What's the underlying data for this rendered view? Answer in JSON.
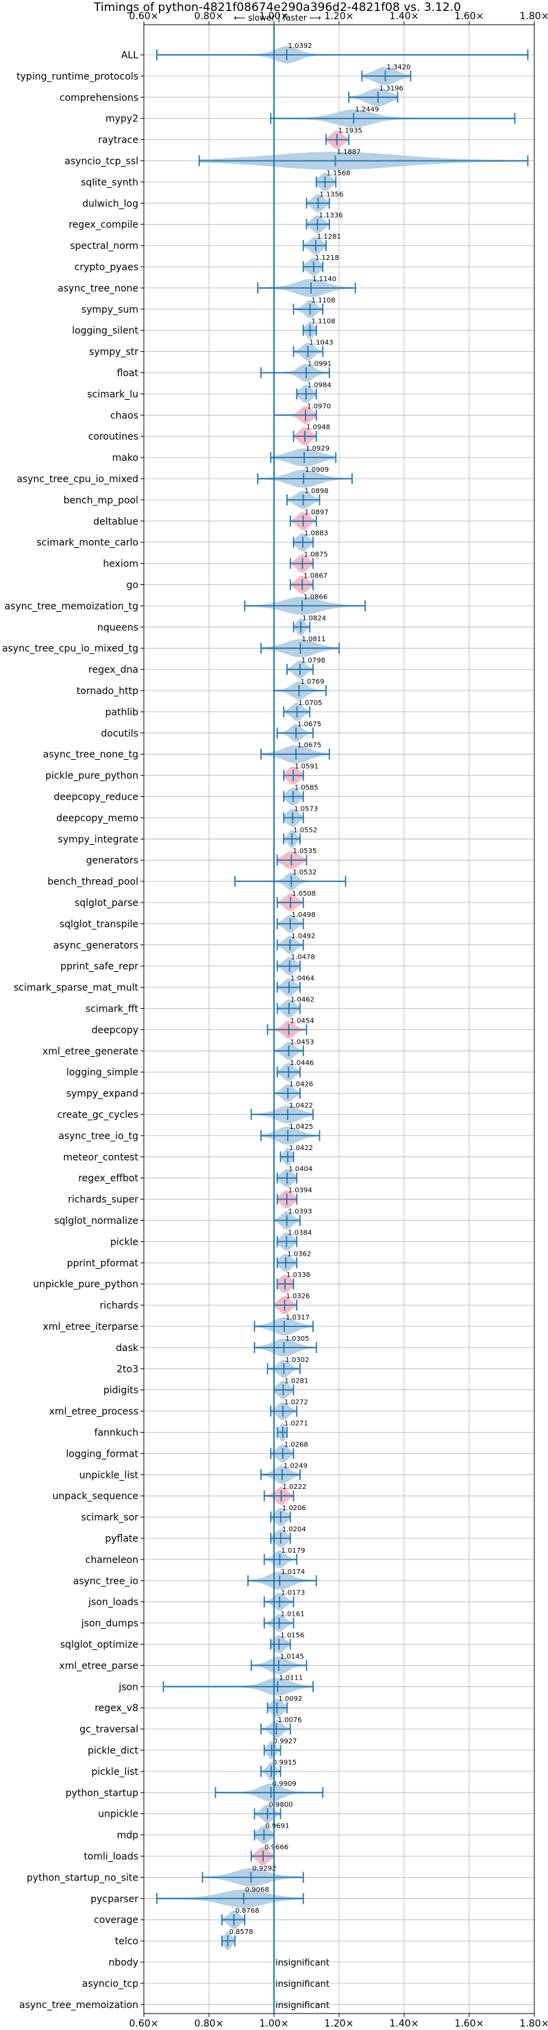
{
  "chart_data": {
    "type": "violin",
    "title": "Timings of python-4821f08674e290a396d2-4821f08 vs. 3.12.0",
    "subtitle": "⟵ slower | faster ⟶",
    "xlim": [
      0.6,
      1.8
    ],
    "xticks": [
      0.6,
      0.8,
      1.0,
      1.2,
      1.4,
      1.6,
      1.8
    ],
    "xtick_labels": [
      "0.60×",
      "0.80×",
      "1.00×",
      "1.20×",
      "1.40×",
      "1.60×",
      "1.80×"
    ],
    "reference_line": 1.0,
    "grid": true,
    "colors": {
      "violin": "#b3cde3",
      "highlight": "#f4b6c2",
      "line": "#1f77b4",
      "grid": "#b0b0b0"
    },
    "insignificant_label": "insignificant",
    "benchmarks": [
      {
        "name": "ALL",
        "value": 1.0392,
        "label": "1.0392",
        "min": 0.64,
        "max": 1.78,
        "spread": 0.06
      },
      {
        "name": "typing_runtime_protocols",
        "value": 1.342,
        "label": "1.3420",
        "min": 1.27,
        "max": 1.42,
        "spread": 0.06
      },
      {
        "name": "comprehensions",
        "value": 1.3196,
        "label": "1.3196",
        "min": 1.23,
        "max": 1.38,
        "spread": 0.06
      },
      {
        "name": "mypy2",
        "value": 1.2449,
        "label": "1.2449",
        "min": 0.99,
        "max": 1.74,
        "spread": 0.1
      },
      {
        "name": "raytrace",
        "value": 1.1935,
        "label": "1.1935",
        "min": 1.16,
        "max": 1.23,
        "spread": 0.03,
        "highlight": true
      },
      {
        "name": "asyncio_tcp_ssl",
        "value": 1.1887,
        "label": "1.1887",
        "min": 0.77,
        "max": 1.78,
        "spread": 0.35
      },
      {
        "name": "sqlite_synth",
        "value": 1.1568,
        "label": "1.1568",
        "min": 1.13,
        "max": 1.19,
        "spread": 0.03
      },
      {
        "name": "dulwich_log",
        "value": 1.1356,
        "label": "1.1356",
        "min": 1.1,
        "max": 1.17,
        "spread": 0.03
      },
      {
        "name": "regex_compile",
        "value": 1.1336,
        "label": "1.1336",
        "min": 1.1,
        "max": 1.17,
        "spread": 0.03
      },
      {
        "name": "spectral_norm",
        "value": 1.1281,
        "label": "1.1281",
        "min": 1.09,
        "max": 1.16,
        "spread": 0.03
      },
      {
        "name": "crypto_pyaes",
        "value": 1.1218,
        "label": "1.1218",
        "min": 1.09,
        "max": 1.15,
        "spread": 0.03
      },
      {
        "name": "async_tree_none",
        "value": 1.114,
        "label": "1.1140",
        "min": 0.95,
        "max": 1.25,
        "spread": 0.08
      },
      {
        "name": "sympy_sum",
        "value": 1.1108,
        "label": "1.1108",
        "min": 1.06,
        "max": 1.15,
        "spread": 0.03
      },
      {
        "name": "logging_silent",
        "value": 1.1108,
        "label": "1.1108",
        "min": 1.09,
        "max": 1.13,
        "spread": 0.02
      },
      {
        "name": "sympy_str",
        "value": 1.1043,
        "label": "1.1043",
        "min": 1.06,
        "max": 1.15,
        "spread": 0.03
      },
      {
        "name": "float",
        "value": 1.0991,
        "label": "1.0991",
        "min": 0.96,
        "max": 1.17,
        "spread": 0.04
      },
      {
        "name": "scimark_lu",
        "value": 1.0984,
        "label": "1.0984",
        "min": 1.07,
        "max": 1.13,
        "spread": 0.03
      },
      {
        "name": "chaos",
        "value": 1.097,
        "label": "1.0970",
        "min": 1.0,
        "max": 1.13,
        "spread": 0.03,
        "highlight": true
      },
      {
        "name": "coroutines",
        "value": 1.0948,
        "label": "1.0948",
        "min": 1.06,
        "max": 1.13,
        "spread": 0.03,
        "highlight": true
      },
      {
        "name": "mako",
        "value": 1.0929,
        "label": "1.0929",
        "min": 0.99,
        "max": 1.19,
        "spread": 0.08
      },
      {
        "name": "async_tree_cpu_io_mixed",
        "value": 1.0909,
        "label": "1.0909",
        "min": 0.95,
        "max": 1.24,
        "spread": 0.08
      },
      {
        "name": "bench_mp_pool",
        "value": 1.0898,
        "label": "1.0898",
        "min": 1.04,
        "max": 1.14,
        "spread": 0.04
      },
      {
        "name": "deltablue",
        "value": 1.0897,
        "label": "1.0897",
        "min": 1.05,
        "max": 1.13,
        "spread": 0.03,
        "highlight": true
      },
      {
        "name": "scimark_monte_carlo",
        "value": 1.0883,
        "label": "1.0883",
        "min": 1.06,
        "max": 1.12,
        "spread": 0.03
      },
      {
        "name": "hexiom",
        "value": 1.0875,
        "label": "1.0875",
        "min": 1.05,
        "max": 1.12,
        "spread": 0.03,
        "highlight": true
      },
      {
        "name": "go",
        "value": 1.0867,
        "label": "1.0867",
        "min": 1.05,
        "max": 1.12,
        "spread": 0.03,
        "highlight": true
      },
      {
        "name": "async_tree_memoization_tg",
        "value": 1.0866,
        "label": "1.0866",
        "min": 0.91,
        "max": 1.28,
        "spread": 0.1
      },
      {
        "name": "nqueens",
        "value": 1.0824,
        "label": "1.0824",
        "min": 1.06,
        "max": 1.11,
        "spread": 0.02
      },
      {
        "name": "async_tree_cpu_io_mixed_tg",
        "value": 1.0811,
        "label": "1.0811",
        "min": 0.96,
        "max": 1.2,
        "spread": 0.08
      },
      {
        "name": "regex_dna",
        "value": 1.0798,
        "label": "1.0798",
        "min": 1.04,
        "max": 1.12,
        "spread": 0.03
      },
      {
        "name": "tornado_http",
        "value": 1.0769,
        "label": "1.0769",
        "min": 1.0,
        "max": 1.16,
        "spread": 0.04
      },
      {
        "name": "pathlib",
        "value": 1.0705,
        "label": "1.0705",
        "min": 1.03,
        "max": 1.11,
        "spread": 0.03
      },
      {
        "name": "docutils",
        "value": 1.0675,
        "label": "1.0675",
        "min": 1.01,
        "max": 1.12,
        "spread": 0.03
      },
      {
        "name": "async_tree_none_tg",
        "value": 1.0675,
        "label": "1.0675",
        "min": 0.96,
        "max": 1.17,
        "spread": 0.07
      },
      {
        "name": "pickle_pure_python",
        "value": 1.0591,
        "label": "1.0591",
        "min": 1.03,
        "max": 1.09,
        "spread": 0.03,
        "highlight": true
      },
      {
        "name": "deepcopy_reduce",
        "value": 1.0585,
        "label": "1.0585",
        "min": 1.03,
        "max": 1.09,
        "spread": 0.03
      },
      {
        "name": "deepcopy_memo",
        "value": 1.0573,
        "label": "1.0573",
        "min": 1.03,
        "max": 1.09,
        "spread": 0.03
      },
      {
        "name": "sympy_integrate",
        "value": 1.0552,
        "label": "1.0552",
        "min": 1.03,
        "max": 1.08,
        "spread": 0.02
      },
      {
        "name": "generators",
        "value": 1.0535,
        "label": "1.0535",
        "min": 1.01,
        "max": 1.1,
        "spread": 0.04,
        "highlight": true
      },
      {
        "name": "bench_thread_pool",
        "value": 1.0532,
        "label": "1.0532",
        "min": 0.88,
        "max": 1.22,
        "spread": 0.03
      },
      {
        "name": "sqlglot_parse",
        "value": 1.0508,
        "label": "1.0508",
        "min": 1.01,
        "max": 1.09,
        "spread": 0.03,
        "highlight": true
      },
      {
        "name": "sqlglot_transpile",
        "value": 1.0498,
        "label": "1.0498",
        "min": 1.01,
        "max": 1.09,
        "spread": 0.03
      },
      {
        "name": "async_generators",
        "value": 1.0492,
        "label": "1.0492",
        "min": 1.01,
        "max": 1.09,
        "spread": 0.03
      },
      {
        "name": "pprint_safe_repr",
        "value": 1.0478,
        "label": "1.0478",
        "min": 1.01,
        "max": 1.08,
        "spread": 0.03
      },
      {
        "name": "scimark_sparse_mat_mult",
        "value": 1.0464,
        "label": "1.0464",
        "min": 1.01,
        "max": 1.08,
        "spread": 0.03
      },
      {
        "name": "scimark_fft",
        "value": 1.0462,
        "label": "1.0462",
        "min": 1.01,
        "max": 1.08,
        "spread": 0.03
      },
      {
        "name": "deepcopy",
        "value": 1.0454,
        "label": "1.0454",
        "min": 0.98,
        "max": 1.1,
        "spread": 0.03,
        "highlight": true
      },
      {
        "name": "xml_etree_generate",
        "value": 1.0453,
        "label": "1.0453",
        "min": 1.0,
        "max": 1.09,
        "spread": 0.03
      },
      {
        "name": "logging_simple",
        "value": 1.0446,
        "label": "1.0446",
        "min": 1.01,
        "max": 1.08,
        "spread": 0.03
      },
      {
        "name": "sympy_expand",
        "value": 1.0426,
        "label": "1.0426",
        "min": 1.0,
        "max": 1.08,
        "spread": 0.03
      },
      {
        "name": "create_gc_cycles",
        "value": 1.0422,
        "label": "1.0422",
        "min": 0.93,
        "max": 1.12,
        "spread": 0.06
      },
      {
        "name": "async_tree_io_tg",
        "value": 1.0425,
        "label": "1.0425",
        "min": 0.96,
        "max": 1.14,
        "spread": 0.06
      },
      {
        "name": "meteor_contest",
        "value": 1.0422,
        "label": "1.0422",
        "min": 1.02,
        "max": 1.06,
        "spread": 0.02
      },
      {
        "name": "regex_effbot",
        "value": 1.0404,
        "label": "1.0404",
        "min": 1.01,
        "max": 1.07,
        "spread": 0.03
      },
      {
        "name": "richards_super",
        "value": 1.0394,
        "label": "1.0394",
        "min": 1.01,
        "max": 1.07,
        "spread": 0.03,
        "highlight": true
      },
      {
        "name": "sqlglot_normalize",
        "value": 1.0393,
        "label": "1.0393",
        "min": 1.0,
        "max": 1.08,
        "spread": 0.03
      },
      {
        "name": "pickle",
        "value": 1.0384,
        "label": "1.0384",
        "min": 1.01,
        "max": 1.07,
        "spread": 0.03
      },
      {
        "name": "pprint_pformat",
        "value": 1.0362,
        "label": "1.0362",
        "min": 1.01,
        "max": 1.07,
        "spread": 0.03
      },
      {
        "name": "unpickle_pure_python",
        "value": 1.0338,
        "label": "1.0338",
        "min": 1.01,
        "max": 1.06,
        "spread": 0.03,
        "highlight": true
      },
      {
        "name": "richards",
        "value": 1.0326,
        "label": "1.0326",
        "min": 1.0,
        "max": 1.07,
        "spread": 0.03,
        "highlight": true
      },
      {
        "name": "xml_etree_iterparse",
        "value": 1.0317,
        "label": "1.0317",
        "min": 0.94,
        "max": 1.12,
        "spread": 0.06
      },
      {
        "name": "dask",
        "value": 1.0305,
        "label": "1.0305",
        "min": 0.94,
        "max": 1.13,
        "spread": 0.06
      },
      {
        "name": "2to3",
        "value": 1.0302,
        "label": "1.0302",
        "min": 0.98,
        "max": 1.08,
        "spread": 0.03
      },
      {
        "name": "pidigits",
        "value": 1.0281,
        "label": "1.0281",
        "min": 1.0,
        "max": 1.06,
        "spread": 0.03
      },
      {
        "name": "xml_etree_process",
        "value": 1.0272,
        "label": "1.0272",
        "min": 0.99,
        "max": 1.07,
        "spread": 0.03
      },
      {
        "name": "fannkuch",
        "value": 1.0271,
        "label": "1.0271",
        "min": 1.01,
        "max": 1.04,
        "spread": 0.02
      },
      {
        "name": "logging_format",
        "value": 1.0268,
        "label": "1.0268",
        "min": 0.99,
        "max": 1.06,
        "spread": 0.03
      },
      {
        "name": "unpickle_list",
        "value": 1.0249,
        "label": "1.0249",
        "min": 0.96,
        "max": 1.08,
        "spread": 0.04
      },
      {
        "name": "unpack_sequence",
        "value": 1.0222,
        "label": "1.0222",
        "min": 0.97,
        "max": 1.06,
        "spread": 0.03,
        "highlight": true
      },
      {
        "name": "scimark_sor",
        "value": 1.0206,
        "label": "1.0206",
        "min": 0.99,
        "max": 1.05,
        "spread": 0.03
      },
      {
        "name": "pyflate",
        "value": 1.0204,
        "label": "1.0204",
        "min": 0.99,
        "max": 1.05,
        "spread": 0.03
      },
      {
        "name": "chameleon",
        "value": 1.0179,
        "label": "1.0179",
        "min": 0.97,
        "max": 1.07,
        "spread": 0.03
      },
      {
        "name": "async_tree_io",
        "value": 1.0174,
        "label": "1.0174",
        "min": 0.92,
        "max": 1.13,
        "spread": 0.06
      },
      {
        "name": "json_loads",
        "value": 1.0173,
        "label": "1.0173",
        "min": 0.97,
        "max": 1.06,
        "spread": 0.03
      },
      {
        "name": "json_dumps",
        "value": 1.0161,
        "label": "1.0161",
        "min": 0.97,
        "max": 1.06,
        "spread": 0.03
      },
      {
        "name": "sqlglot_optimize",
        "value": 1.0156,
        "label": "1.0156",
        "min": 0.99,
        "max": 1.05,
        "spread": 0.03
      },
      {
        "name": "xml_etree_parse",
        "value": 1.0145,
        "label": "1.0145",
        "min": 0.93,
        "max": 1.1,
        "spread": 0.05
      },
      {
        "name": "json",
        "value": 1.0111,
        "label": "1.0111",
        "min": 0.66,
        "max": 1.12,
        "spread": 0.07
      },
      {
        "name": "regex_v8",
        "value": 1.0092,
        "label": "1.0092",
        "min": 0.98,
        "max": 1.04,
        "spread": 0.03
      },
      {
        "name": "gc_traversal",
        "value": 1.0076,
        "label": "1.0076",
        "min": 0.96,
        "max": 1.05,
        "spread": 0.03
      },
      {
        "name": "pickle_dict",
        "value": 0.9927,
        "label": "0.9927",
        "min": 0.97,
        "max": 1.02,
        "spread": 0.02
      },
      {
        "name": "pickle_list",
        "value": 0.9915,
        "label": "0.9915",
        "min": 0.96,
        "max": 1.02,
        "spread": 0.02
      },
      {
        "name": "python_startup",
        "value": 0.9909,
        "label": "0.9909",
        "min": 0.82,
        "max": 1.15,
        "spread": 0.06
      },
      {
        "name": "unpickle",
        "value": 0.98,
        "label": "0.9800",
        "min": 0.94,
        "max": 1.02,
        "spread": 0.03
      },
      {
        "name": "mdp",
        "value": 0.9691,
        "label": "0.9691",
        "min": 0.94,
        "max": 1.0,
        "spread": 0.03
      },
      {
        "name": "tomli_loads",
        "value": 0.9666,
        "label": "0.9666",
        "min": 0.93,
        "max": 1.0,
        "spread": 0.03,
        "highlight": true
      },
      {
        "name": "python_startup_no_site",
        "value": 0.9292,
        "label": "0.9292",
        "min": 0.78,
        "max": 1.09,
        "spread": 0.09
      },
      {
        "name": "pycparser",
        "value": 0.9068,
        "label": "0.9068",
        "min": 0.64,
        "max": 1.09,
        "spread": 0.12
      },
      {
        "name": "coverage",
        "value": 0.8768,
        "label": "0.8768",
        "min": 0.84,
        "max": 0.91,
        "spread": 0.03
      },
      {
        "name": "telco",
        "value": 0.8578,
        "label": "0.8578",
        "min": 0.84,
        "max": 0.88,
        "spread": 0.02
      },
      {
        "name": "nbody",
        "insignificant": true
      },
      {
        "name": "asyncio_tcp",
        "insignificant": true
      },
      {
        "name": "async_tree_memoization",
        "insignificant": true
      }
    ]
  }
}
